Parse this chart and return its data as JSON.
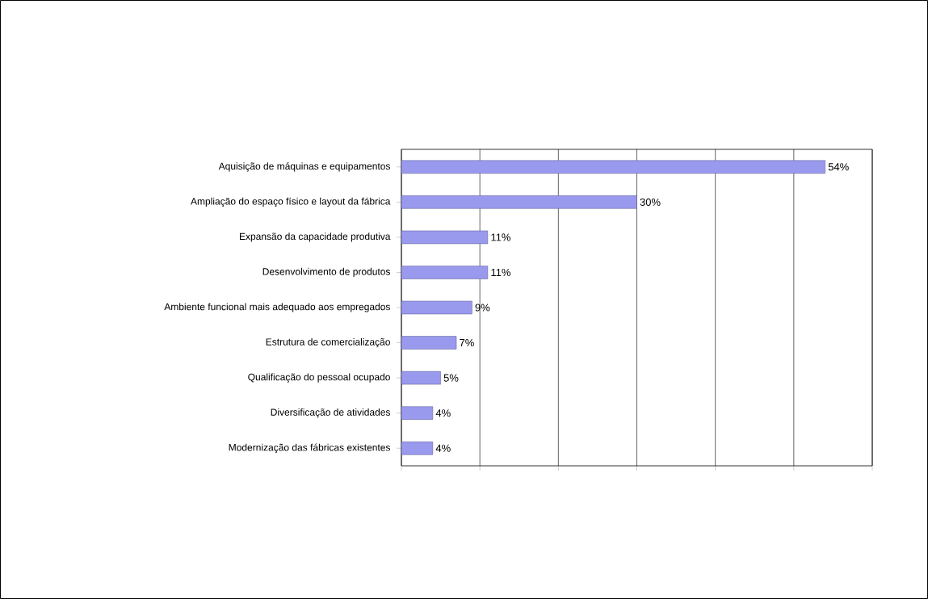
{
  "chart_data": {
    "type": "bar",
    "orientation": "horizontal",
    "categories": [
      "Aquisição de máquinas e equipamentos",
      "Ampliação do espaço físico e layout da fábrica",
      "Expansão da capacidade produtiva",
      "Desenvolvimento de produtos",
      "Ambiente funcional mais adequado aos empregados",
      "Estrutura de comercialização",
      "Qualificação do pessoal ocupado",
      "Diversificação de atividades",
      "Modernização das fábricas existentes"
    ],
    "values": [
      54,
      30,
      11,
      11,
      9,
      7,
      5,
      4,
      4
    ],
    "value_labels": [
      "54%",
      "30%",
      "11%",
      "11%",
      "9%",
      "7%",
      "5%",
      "4%",
      "4%"
    ],
    "color": "#9999ee",
    "xlim": [
      0,
      60
    ],
    "xticks": [
      {
        "value": 0,
        "label": null
      },
      {
        "value": 10,
        "label": null
      },
      {
        "value": 20,
        "label": null
      },
      {
        "value": 30,
        "label": null
      },
      {
        "value": 40,
        "label": null
      },
      {
        "value": 50,
        "label": null
      },
      {
        "value": 60,
        "label": null
      }
    ],
    "grid": "x",
    "tick_labels": "y"
  }
}
